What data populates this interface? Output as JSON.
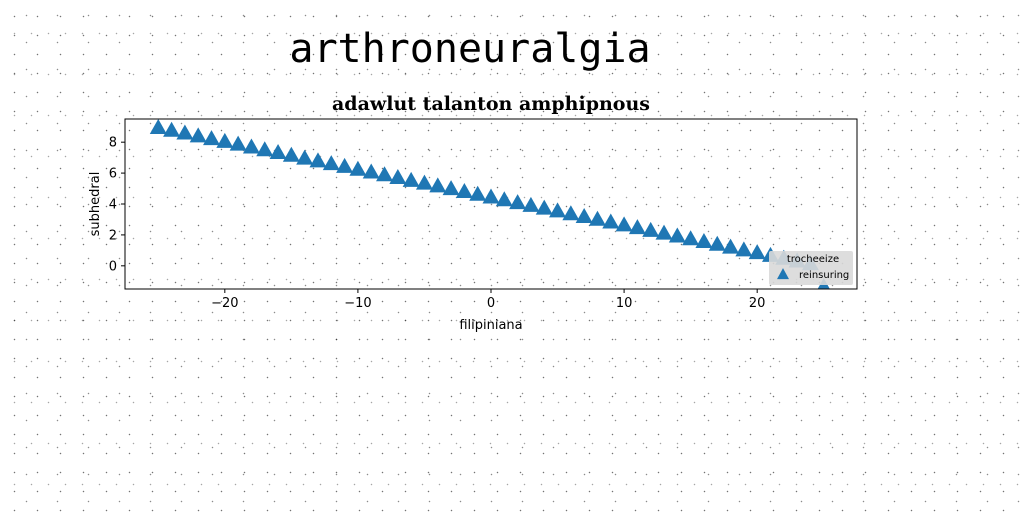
{
  "page": {
    "title": "arthroneuralgia"
  },
  "chart_data": {
    "type": "scatter",
    "title": "adawlut talanton amphipnous",
    "xlabel": "filipiniana",
    "ylabel": "subhedral",
    "xlim": [
      -27.5,
      27.5
    ],
    "ylim": [
      -1.5,
      9.5
    ],
    "xticks": [
      -20,
      -10,
      0,
      10,
      20
    ],
    "yticks": [
      0,
      2,
      4,
      6,
      8
    ],
    "grid": false,
    "legend": {
      "title": "trocheeize",
      "placement": "lower right"
    },
    "series": [
      {
        "name": "reinsuring",
        "marker": "triangle-up",
        "color": "#1f77b4",
        "x": [
          -25,
          -24,
          -23,
          -22,
          -21,
          -20,
          -19,
          -18,
          -17,
          -16,
          -15,
          -14,
          -13,
          -12,
          -11,
          -10,
          -9,
          -8,
          -7,
          -6,
          -5,
          -4,
          -3,
          -2,
          -1,
          0,
          1,
          2,
          3,
          4,
          5,
          6,
          7,
          8,
          9,
          10,
          11,
          12,
          13,
          14,
          15,
          16,
          17,
          18,
          19,
          20,
          21,
          22,
          23,
          24,
          25
        ],
        "y": [
          8.9,
          8.72,
          8.54,
          8.36,
          8.18,
          8.0,
          7.82,
          7.64,
          7.46,
          7.28,
          7.1,
          6.92,
          6.74,
          6.56,
          6.38,
          6.2,
          6.02,
          5.84,
          5.66,
          5.48,
          5.3,
          5.12,
          4.94,
          4.76,
          4.58,
          4.4,
          4.22,
          4.04,
          3.86,
          3.68,
          3.5,
          3.32,
          3.14,
          2.96,
          2.78,
          2.6,
          2.42,
          2.24,
          2.06,
          1.88,
          1.7,
          1.52,
          1.34,
          1.16,
          0.98,
          0.8,
          0.62,
          0.44,
          0.26,
          0.08,
          -1.4
        ]
      }
    ]
  }
}
